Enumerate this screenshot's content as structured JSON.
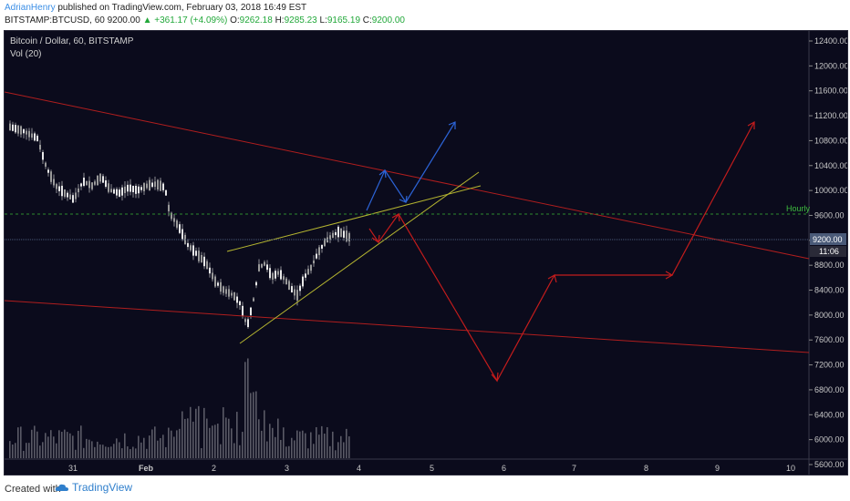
{
  "header": {
    "author": "AdrianHenry",
    "published_text": "published on TradingView.com, February 03, 2018 16:49 EST",
    "symbol": "BITSTAMP:BTCUSD, 60",
    "last": "9200.00",
    "change": "▲ +361.17 (+4.09%)",
    "o_label": "O:",
    "o_value": "9262.18",
    "h_label": "H:",
    "h_value": "9285.23",
    "l_label": "L:",
    "l_value": "9165.19",
    "c_label": "C:",
    "c_value": "9200.00"
  },
  "chart": {
    "title": "Bitcoin / Dollar, 60, BITSTAMP",
    "indicator": "Vol (20)",
    "hourly_label": "Hourly",
    "price_tag": "9200.00",
    "time_tag": "11:06",
    "colors": {
      "background": "#0b0b1c",
      "candle": "#c8c8c8",
      "red_line": "#b01e1e",
      "yellow_line": "#b5b530",
      "blue_arrow": "#2c63d6",
      "red_arrow": "#c41c1c",
      "green_dashed": "#2e8b2e",
      "volume": "#5a5a66"
    }
  },
  "chart_data": {
    "type": "candlestick",
    "title": "Bitcoin / Dollar, 60, BITSTAMP",
    "y_ticks": [
      "12400.00",
      "12000.00",
      "11600.00",
      "11200.00",
      "10800.00",
      "10400.00",
      "10000.00",
      "9600.00",
      "9200.00",
      "8800.00",
      "8400.00",
      "8000.00",
      "7600.00",
      "7200.00",
      "6800.00",
      "6400.00",
      "6000.00",
      "5600.00"
    ],
    "x_ticks": [
      "31",
      "Feb",
      "2",
      "3",
      "4",
      "5",
      "6",
      "7",
      "8",
      "9",
      "10"
    ],
    "ylim": [
      5600,
      12600
    ],
    "hourly_level": 9620,
    "last_price": 9200
  },
  "footer": {
    "created": "Created with",
    "brand": "TradingView"
  }
}
